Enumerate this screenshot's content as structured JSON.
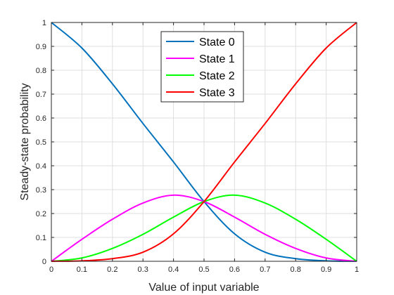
{
  "chart_data": {
    "type": "line",
    "title": "",
    "xlabel": "Value of input variable",
    "ylabel": "Steady-state probability",
    "xlim": [
      0,
      1
    ],
    "ylim": [
      0,
      1
    ],
    "xticks": [
      "0",
      "0.1",
      "0.2",
      "0.3",
      "0.4",
      "0.5",
      "0.6",
      "0.7",
      "0.8",
      "0.9",
      "1"
    ],
    "yticks": [
      "0",
      "0.1",
      "0.2",
      "0.3",
      "0.4",
      "0.5",
      "0.6",
      "0.7",
      "0.8",
      "0.9",
      "1"
    ],
    "grid": true,
    "legend_position": "top-center",
    "x": [
      0,
      0.1,
      0.2,
      0.3,
      0.4,
      0.5,
      0.6,
      0.7,
      0.8,
      0.9,
      1
    ],
    "series": [
      {
        "name": "State 0",
        "color": "#0072BD",
        "values": [
          1.0,
          0.893,
          0.743,
          0.577,
          0.416,
          0.25,
          0.115,
          0.038,
          0.011,
          0.002,
          0.0
        ]
      },
      {
        "name": "State 1",
        "color": "#FF00FF",
        "values": [
          0.0,
          0.092,
          0.176,
          0.244,
          0.277,
          0.25,
          0.185,
          0.113,
          0.054,
          0.014,
          0.0
        ]
      },
      {
        "name": "State 2",
        "color": "#00FF00",
        "values": [
          0.0,
          0.014,
          0.054,
          0.113,
          0.185,
          0.25,
          0.277,
          0.244,
          0.176,
          0.092,
          0.0
        ]
      },
      {
        "name": "State 3",
        "color": "#FF0000",
        "values": [
          0.0,
          0.002,
          0.011,
          0.038,
          0.115,
          0.25,
          0.416,
          0.577,
          0.743,
          0.893,
          1.0
        ]
      }
    ]
  }
}
